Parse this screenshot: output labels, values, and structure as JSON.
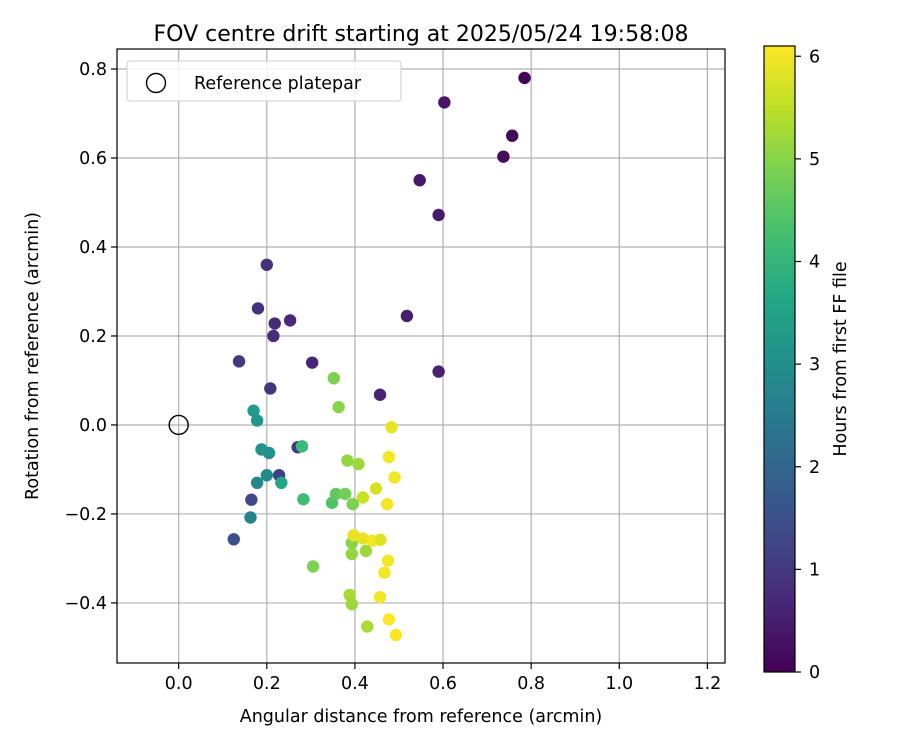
{
  "chart_data": {
    "type": "scatter",
    "title": "FOV centre drift starting at 2025/05/24 19:58:08",
    "xlabel": "Angular distance from reference (arcmin)",
    "ylabel": "Rotation from reference (arcmin)",
    "xlim": [
      -0.14,
      1.24
    ],
    "ylim": [
      -0.535,
      0.845
    ],
    "xticks": [
      0.0,
      0.2,
      0.4,
      0.6,
      0.8,
      1.0,
      1.2
    ],
    "xtick_labels": [
      "0.0",
      "0.2",
      "0.4",
      "0.6",
      "0.8",
      "1.0",
      "1.2"
    ],
    "yticks": [
      -0.4,
      -0.2,
      0.0,
      0.2,
      0.4,
      0.6,
      0.8
    ],
    "ytick_labels": [
      "−0.4",
      "−0.2",
      "0.0",
      "0.2",
      "0.4",
      "0.6",
      "0.8"
    ],
    "grid": true,
    "legend": {
      "placement": "top-left",
      "entries": [
        "Reference platepar"
      ]
    },
    "reference": {
      "name": "Reference platepar",
      "x": 0.0,
      "y": 0.0
    },
    "colorbar": {
      "label": "Hours from first FF file",
      "min": 0,
      "max": 6.1,
      "ticks": [
        0,
        1,
        2,
        3,
        4,
        5,
        6
      ],
      "tick_labels": [
        "0",
        "1",
        "2",
        "3",
        "4",
        "5",
        "6"
      ],
      "colormap": "viridis"
    },
    "points": [
      {
        "x": 0.785,
        "y": 0.78,
        "c": 0.05
      },
      {
        "x": 0.757,
        "y": 0.65,
        "c": 0.12
      },
      {
        "x": 0.737,
        "y": 0.603,
        "c": 0.18
      },
      {
        "x": 0.603,
        "y": 0.725,
        "c": 0.35
      },
      {
        "x": 0.547,
        "y": 0.55,
        "c": 0.4
      },
      {
        "x": 0.59,
        "y": 0.472,
        "c": 0.45
      },
      {
        "x": 0.518,
        "y": 0.245,
        "c": 0.5
      },
      {
        "x": 0.59,
        "y": 0.12,
        "c": 0.55
      },
      {
        "x": 0.457,
        "y": 0.068,
        "c": 0.6
      },
      {
        "x": 0.303,
        "y": 0.14,
        "c": 0.65
      },
      {
        "x": 0.253,
        "y": 0.235,
        "c": 0.7
      },
      {
        "x": 0.218,
        "y": 0.228,
        "c": 0.75
      },
      {
        "x": 0.215,
        "y": 0.2,
        "c": 0.8
      },
      {
        "x": 0.2,
        "y": 0.36,
        "c": 0.85
      },
      {
        "x": 0.18,
        "y": 0.262,
        "c": 0.9
      },
      {
        "x": 0.208,
        "y": 0.082,
        "c": 0.95
      },
      {
        "x": 0.137,
        "y": 0.143,
        "c": 1.0
      },
      {
        "x": 0.27,
        "y": -0.05,
        "c": 1.05
      },
      {
        "x": 0.228,
        "y": -0.113,
        "c": 1.1
      },
      {
        "x": 0.165,
        "y": -0.168,
        "c": 1.3
      },
      {
        "x": 0.125,
        "y": -0.257,
        "c": 1.5
      },
      {
        "x": 0.163,
        "y": -0.208,
        "c": 2.7
      },
      {
        "x": 0.178,
        "y": -0.13,
        "c": 2.8
      },
      {
        "x": 0.2,
        "y": -0.113,
        "c": 2.9
      },
      {
        "x": 0.205,
        "y": -0.063,
        "c": 3.0
      },
      {
        "x": 0.188,
        "y": -0.055,
        "c": 3.1
      },
      {
        "x": 0.178,
        "y": 0.01,
        "c": 3.2
      },
      {
        "x": 0.17,
        "y": 0.032,
        "c": 3.3
      },
      {
        "x": 0.233,
        "y": -0.13,
        "c": 3.6
      },
      {
        "x": 0.28,
        "y": -0.048,
        "c": 4.1
      },
      {
        "x": 0.283,
        "y": -0.167,
        "c": 4.2
      },
      {
        "x": 0.348,
        "y": -0.175,
        "c": 4.4
      },
      {
        "x": 0.357,
        "y": -0.155,
        "c": 4.6
      },
      {
        "x": 0.378,
        "y": -0.155,
        "c": 4.8
      },
      {
        "x": 0.395,
        "y": -0.178,
        "c": 4.9
      },
      {
        "x": 0.363,
        "y": 0.04,
        "c": 5.0
      },
      {
        "x": 0.352,
        "y": 0.105,
        "c": 4.9
      },
      {
        "x": 0.305,
        "y": -0.318,
        "c": 4.9
      },
      {
        "x": 0.383,
        "y": -0.08,
        "c": 5.1
      },
      {
        "x": 0.408,
        "y": -0.088,
        "c": 5.2
      },
      {
        "x": 0.393,
        "y": -0.265,
        "c": 5.0
      },
      {
        "x": 0.393,
        "y": -0.29,
        "c": 5.1
      },
      {
        "x": 0.425,
        "y": -0.283,
        "c": 5.2
      },
      {
        "x": 0.388,
        "y": -0.382,
        "c": 5.3
      },
      {
        "x": 0.393,
        "y": -0.403,
        "c": 5.2
      },
      {
        "x": 0.428,
        "y": -0.453,
        "c": 5.3
      },
      {
        "x": 0.418,
        "y": -0.163,
        "c": 5.6
      },
      {
        "x": 0.448,
        "y": -0.143,
        "c": 5.7
      },
      {
        "x": 0.397,
        "y": -0.248,
        "c": 5.9
      },
      {
        "x": 0.418,
        "y": -0.255,
        "c": 5.9
      },
      {
        "x": 0.44,
        "y": -0.26,
        "c": 6.0
      },
      {
        "x": 0.458,
        "y": -0.258,
        "c": 5.8
      },
      {
        "x": 0.483,
        "y": -0.005,
        "c": 5.9
      },
      {
        "x": 0.477,
        "y": -0.072,
        "c": 6.0
      },
      {
        "x": 0.49,
        "y": -0.118,
        "c": 6.0
      },
      {
        "x": 0.473,
        "y": -0.178,
        "c": 6.0
      },
      {
        "x": 0.475,
        "y": -0.305,
        "c": 6.0
      },
      {
        "x": 0.467,
        "y": -0.332,
        "c": 6.0
      },
      {
        "x": 0.457,
        "y": -0.387,
        "c": 6.0
      },
      {
        "x": 0.477,
        "y": -0.437,
        "c": 6.1
      },
      {
        "x": 0.493,
        "y": -0.472,
        "c": 6.1
      }
    ]
  }
}
